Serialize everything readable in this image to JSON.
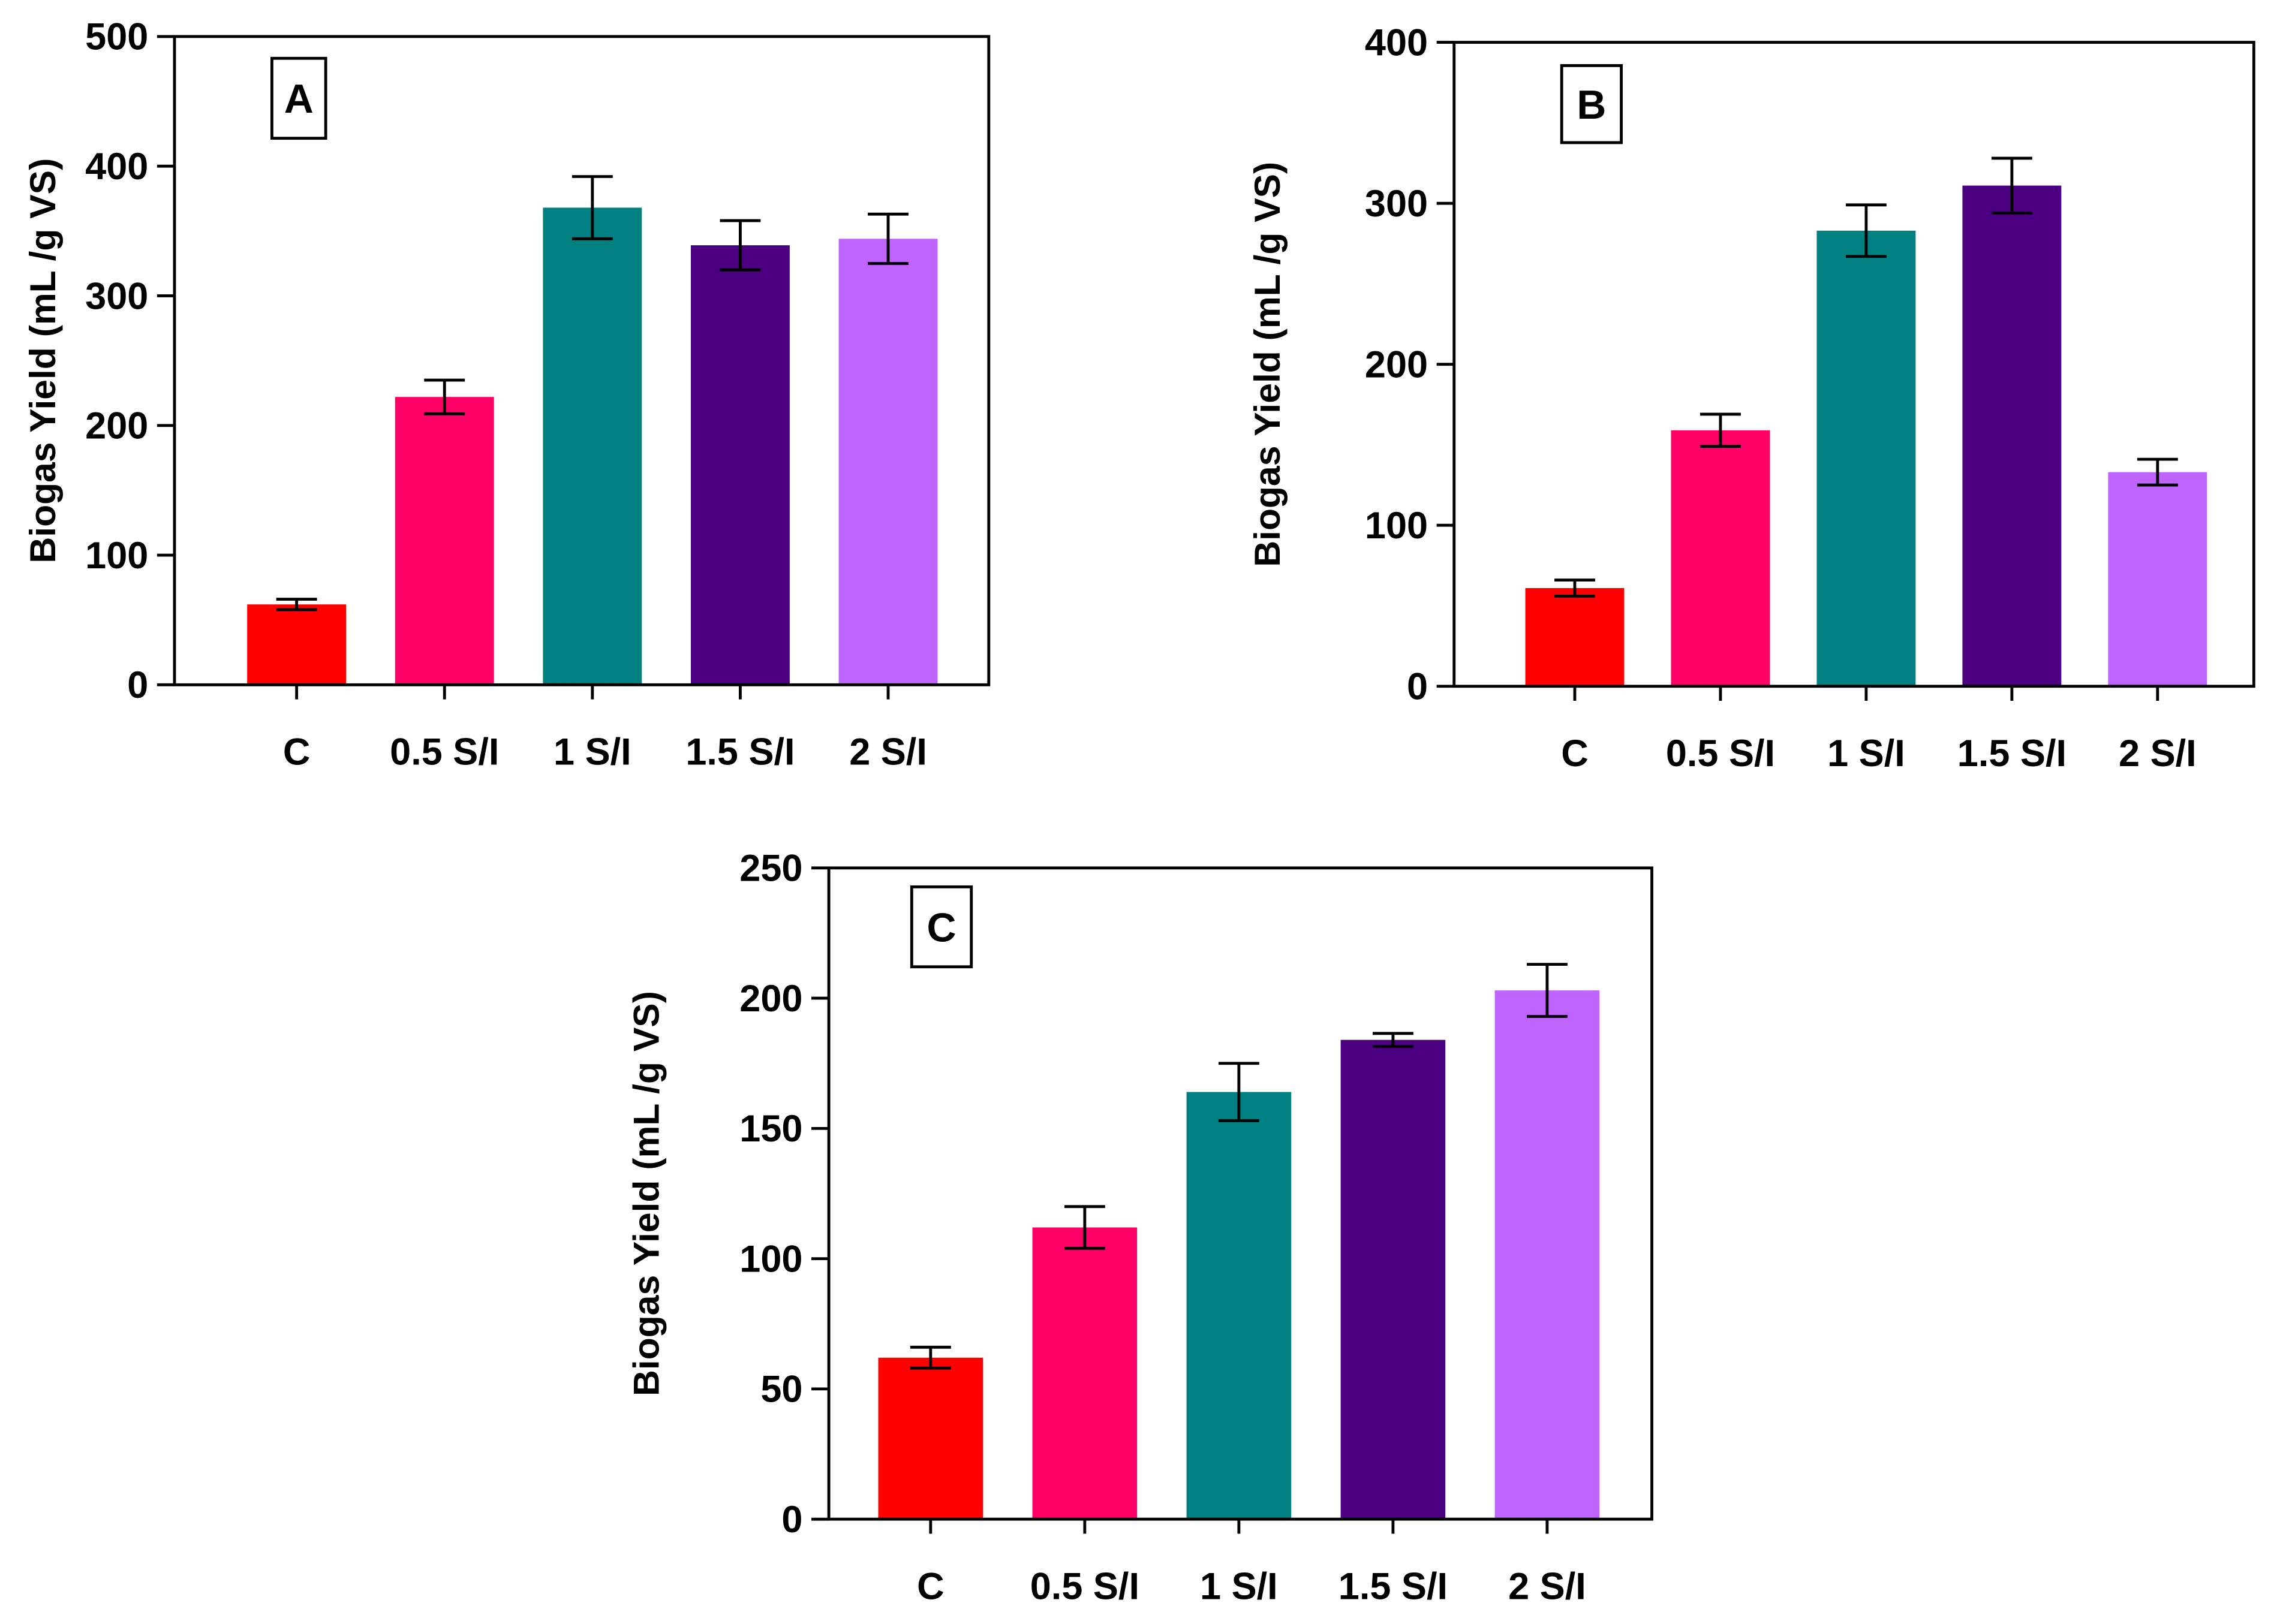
{
  "chart_data": [
    {
      "type": "bar",
      "panel_label": "A",
      "categories": [
        "C",
        "0.5 S/I",
        "1 S/I",
        "1.5 S/I",
        "2 S/I"
      ],
      "values": [
        62,
        222,
        368,
        339,
        344
      ],
      "errors": [
        4,
        13,
        24,
        19,
        19
      ],
      "colors": [
        "#FF0000",
        "#FF0066",
        "#008080",
        "#4B0082",
        "#BF64FF"
      ],
      "ylabel": "Biogas Yield (mL /g VS)",
      "xlabel": "",
      "ylim": [
        0,
        500
      ],
      "yticks": [
        0,
        100,
        200,
        300,
        400,
        500
      ],
      "grid": false
    },
    {
      "type": "bar",
      "panel_label": "B",
      "categories": [
        "C",
        "0.5 S/I",
        "1 S/I",
        "1.5 S/I",
        "2 S/I"
      ],
      "values": [
        61,
        159,
        283,
        311,
        133
      ],
      "errors": [
        5,
        10,
        16,
        17,
        8
      ],
      "colors": [
        "#FF0000",
        "#FF0066",
        "#008080",
        "#4B0082",
        "#BF64FF"
      ],
      "ylabel": "Biogas Yield (mL /g VS)",
      "xlabel": "",
      "ylim": [
        0,
        400
      ],
      "yticks": [
        0,
        100,
        200,
        300,
        400
      ],
      "grid": false
    },
    {
      "type": "bar",
      "panel_label": "C",
      "categories": [
        "C",
        "0.5 S/I",
        "1 S/I",
        "1.5 S/I",
        "2 S/I"
      ],
      "values": [
        62,
        112,
        164,
        184,
        203
      ],
      "errors": [
        4,
        8,
        11,
        2.5,
        10
      ],
      "colors": [
        "#FF0000",
        "#FF0066",
        "#008080",
        "#4B0082",
        "#BF64FF"
      ],
      "ylabel": "Biogas Yield (mL /g VS)",
      "xlabel": "",
      "ylim": [
        0,
        250
      ],
      "yticks": [
        0,
        50,
        100,
        150,
        200,
        250
      ],
      "grid": false
    }
  ]
}
